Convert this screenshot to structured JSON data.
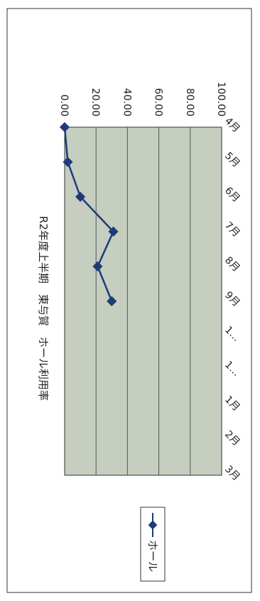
{
  "chart_data": {
    "type": "line",
    "title": "R2年度上半期　東与賀　ホール利用率",
    "categories": [
      "4月",
      "5月",
      "6月",
      "7月",
      "8月",
      "9月",
      "1…",
      "1…",
      "1月",
      "2月",
      "3月"
    ],
    "series": [
      {
        "name": "ホール",
        "values": [
          0,
          2,
          10,
          31,
          21,
          30,
          null,
          null,
          null,
          null,
          null
        ]
      }
    ],
    "y_ticks": [
      "0.00",
      "20.00",
      "40.00",
      "60.00",
      "80.00",
      "100.00"
    ],
    "ylim": [
      0,
      100
    ],
    "grid": true,
    "legend_position": "top-right",
    "colors": {
      "plot_bg": "#c5cebf",
      "line": "#1f3a78",
      "grid": "#555555",
      "frame": "#333333"
    }
  }
}
